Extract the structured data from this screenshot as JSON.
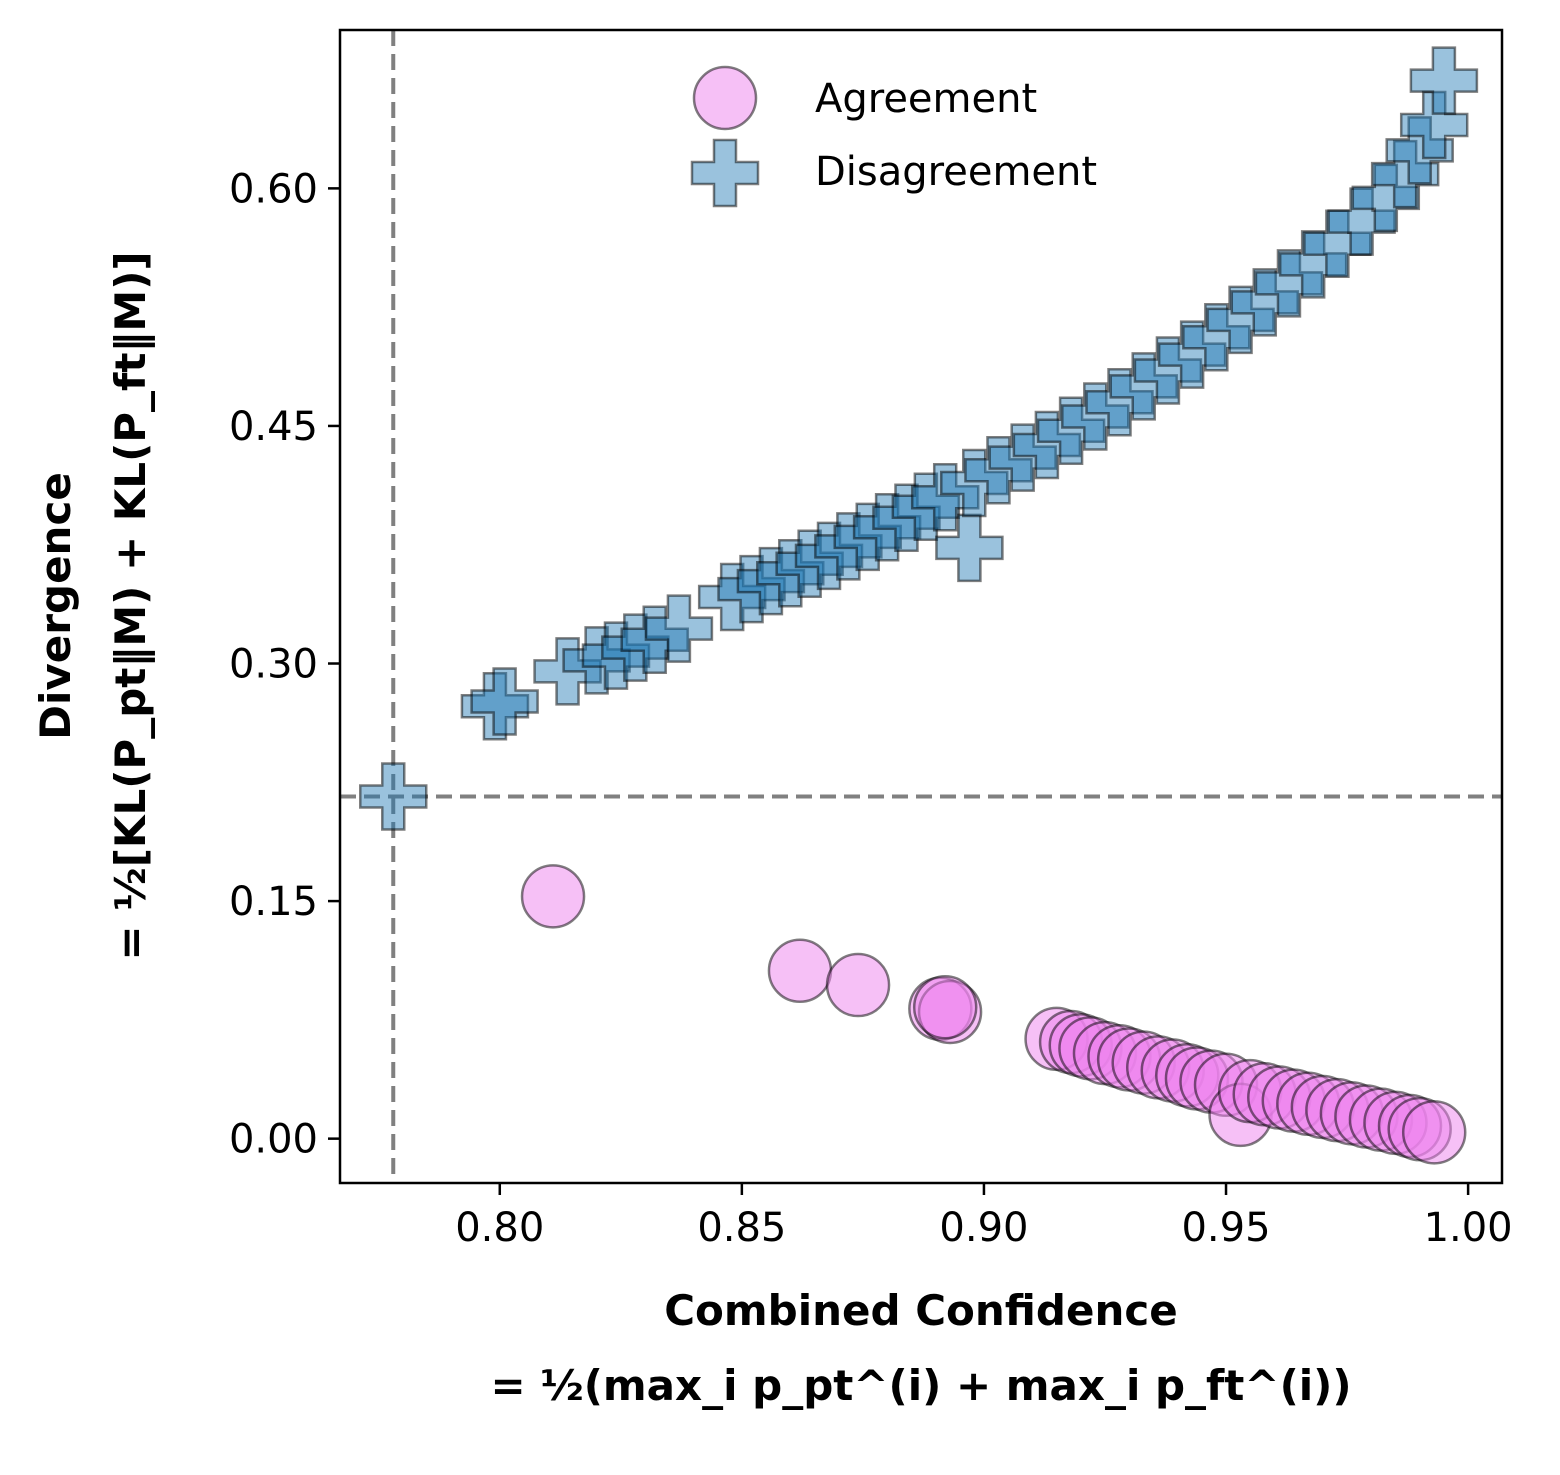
{
  "chart_data": {
    "type": "scatter",
    "xlabel": "Combined Confidence",
    "xlabel_formula": "= ½(max_i p_pt^(i) + max_i p_ft^(i))",
    "ylabel": "Divergence",
    "ylabel_formula": "= ½[KL(P_pt‖M) + KL(P_ft‖M)]",
    "xlim": [
      0.767,
      1.007
    ],
    "ylim": [
      -0.028,
      0.7
    ],
    "xticks": [
      "0.80",
      "0.85",
      "0.90",
      "0.95",
      "1.00"
    ],
    "xtick_values": [
      0.8,
      0.85,
      0.9,
      0.95,
      1.0
    ],
    "yticks": [
      "0.00",
      "0.15",
      "0.30",
      "0.45",
      "0.60"
    ],
    "ytick_values": [
      0.0,
      0.15,
      0.3,
      0.45,
      0.6
    ],
    "threshold_x": 0.778,
    "threshold_y": 0.216,
    "legend": {
      "placement": "upper-center",
      "entries": [
        "Agreement",
        "Disagreement"
      ]
    },
    "series": [
      {
        "name": "Agreement",
        "marker": "circle",
        "color": "#EE82EE",
        "points": [
          [
            0.811,
            0.153
          ],
          [
            0.862,
            0.106
          ],
          [
            0.874,
            0.097
          ],
          [
            0.891,
            0.082
          ],
          [
            0.893,
            0.08
          ],
          [
            0.892,
            0.083
          ],
          [
            0.915,
            0.063
          ],
          [
            0.918,
            0.061
          ],
          [
            0.92,
            0.059
          ],
          [
            0.922,
            0.057
          ],
          [
            0.925,
            0.054
          ],
          [
            0.928,
            0.052
          ],
          [
            0.93,
            0.05
          ],
          [
            0.933,
            0.048
          ],
          [
            0.936,
            0.045
          ],
          [
            0.939,
            0.043
          ],
          [
            0.942,
            0.04
          ],
          [
            0.944,
            0.038
          ],
          [
            0.947,
            0.036
          ],
          [
            0.95,
            0.034
          ],
          [
            0.953,
            0.015
          ],
          [
            0.955,
            0.03
          ],
          [
            0.958,
            0.028
          ],
          [
            0.961,
            0.026
          ],
          [
            0.964,
            0.024
          ],
          [
            0.967,
            0.022
          ],
          [
            0.97,
            0.02
          ],
          [
            0.973,
            0.018
          ],
          [
            0.976,
            0.016
          ],
          [
            0.979,
            0.014
          ],
          [
            0.982,
            0.012
          ],
          [
            0.985,
            0.01
          ],
          [
            0.988,
            0.008
          ],
          [
            0.99,
            0.006
          ],
          [
            0.993,
            0.004
          ]
        ]
      },
      {
        "name": "Disagreement",
        "marker": "plus",
        "color": "#1F77B4",
        "points": [
          [
            0.778,
            0.216
          ],
          [
            0.799,
            0.273
          ],
          [
            0.801,
            0.276
          ],
          [
            0.814,
            0.295
          ],
          [
            0.82,
            0.302
          ],
          [
            0.824,
            0.305
          ],
          [
            0.828,
            0.31
          ],
          [
            0.832,
            0.315
          ],
          [
            0.837,
            0.322
          ],
          [
            0.848,
            0.342
          ],
          [
            0.852,
            0.347
          ],
          [
            0.856,
            0.352
          ],
          [
            0.86,
            0.357
          ],
          [
            0.864,
            0.363
          ],
          [
            0.868,
            0.368
          ],
          [
            0.872,
            0.374
          ],
          [
            0.876,
            0.38
          ],
          [
            0.88,
            0.386
          ],
          [
            0.884,
            0.392
          ],
          [
            0.888,
            0.399
          ],
          [
            0.892,
            0.405
          ],
          [
            0.897,
            0.373
          ],
          [
            0.898,
            0.414
          ],
          [
            0.903,
            0.422
          ],
          [
            0.908,
            0.43
          ],
          [
            0.913,
            0.438
          ],
          [
            0.918,
            0.447
          ],
          [
            0.923,
            0.456
          ],
          [
            0.928,
            0.465
          ],
          [
            0.933,
            0.475
          ],
          [
            0.938,
            0.485
          ],
          [
            0.943,
            0.495
          ],
          [
            0.948,
            0.506
          ],
          [
            0.953,
            0.517
          ],
          [
            0.958,
            0.528
          ],
          [
            0.963,
            0.54
          ],
          [
            0.968,
            0.552
          ],
          [
            0.973,
            0.565
          ],
          [
            0.978,
            0.579
          ],
          [
            0.983,
            0.594
          ],
          [
            0.987,
            0.609
          ],
          [
            0.99,
            0.624
          ],
          [
            0.993,
            0.64
          ],
          [
            0.995,
            0.668
          ]
        ]
      }
    ]
  }
}
